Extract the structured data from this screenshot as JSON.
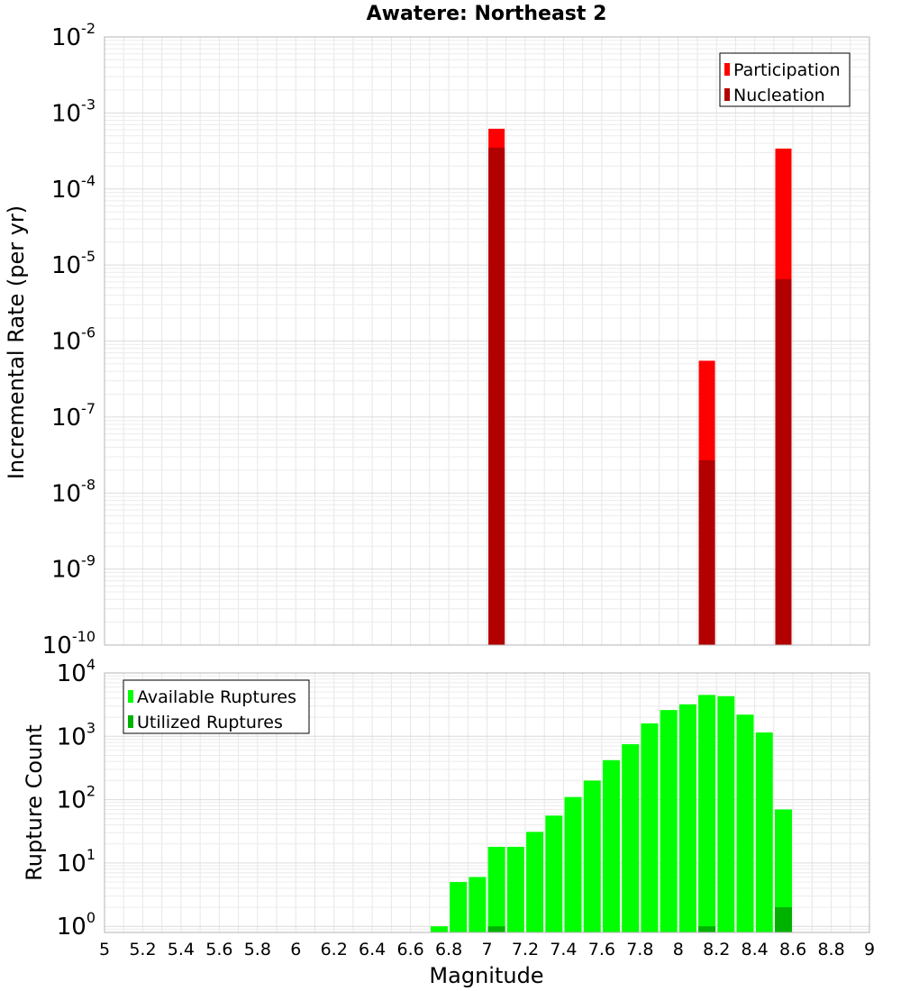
{
  "chart_data": [
    {
      "type": "bar",
      "title": "Awatere: Northeast 2",
      "xlabel": "Magnitude",
      "ylabel": "Incremental Rate (per yr)",
      "yscale": "log",
      "ylim": [
        1e-10,
        0.01
      ],
      "xlim": [
        5,
        9
      ],
      "y_tick_exponents": [
        "-2",
        "-3",
        "-4",
        "-5",
        "-6",
        "-7",
        "-8",
        "-9",
        "-10"
      ],
      "y_tick_base": "10",
      "legend": {
        "position": "top-right",
        "entries": [
          "Participation",
          "Nucleation"
        ]
      },
      "series": [
        {
          "name": "Participation",
          "color": "#ff0000",
          "points": [
            {
              "x": 7.05,
              "y": 0.00062
            },
            {
              "x": 8.15,
              "y": 5.5e-07
            },
            {
              "x": 8.55,
              "y": 0.00034
            }
          ]
        },
        {
          "name": "Nucleation",
          "color": "#b20000",
          "points": [
            {
              "x": 7.05,
              "y": 0.00035
            },
            {
              "x": 8.15,
              "y": 2.7e-08
            },
            {
              "x": 8.55,
              "y": 6.5e-06
            }
          ]
        }
      ]
    },
    {
      "type": "bar",
      "xlabel": "Magnitude",
      "ylabel": "Rupture Count",
      "yscale": "log",
      "ylim": [
        0.8,
        10000
      ],
      "xlim": [
        5,
        9
      ],
      "y_tick_exponents": [
        "0",
        "1",
        "2",
        "3",
        "4"
      ],
      "y_tick_base": "10",
      "x_tick_labels": [
        "5",
        "5.2",
        "5.4",
        "5.6",
        "5.8",
        "6",
        "6.2",
        "6.4",
        "6.6",
        "6.8",
        "7",
        "7.2",
        "7.4",
        "7.6",
        "7.8",
        "8",
        "8.2",
        "8.4",
        "8.6",
        "8.8",
        "9"
      ],
      "legend": {
        "position": "top-left",
        "entries": [
          "Available Ruptures",
          "Utilized Ruptures"
        ]
      },
      "series": [
        {
          "name": "Available Ruptures",
          "color": "#00ff00",
          "x": [
            6.75,
            6.85,
            6.95,
            7.05,
            7.15,
            7.25,
            7.35,
            7.45,
            7.55,
            7.65,
            7.75,
            7.85,
            7.95,
            8.05,
            8.15,
            8.25,
            8.35,
            8.45,
            8.55
          ],
          "values": [
            1,
            5,
            6,
            18,
            18,
            31,
            56,
            110,
            200,
            420,
            750,
            1600,
            2600,
            3200,
            4500,
            4300,
            2200,
            1150,
            70
          ]
        },
        {
          "name": "Utilized Ruptures",
          "color": "#00b200",
          "x": [
            7.05,
            8.15,
            8.55
          ],
          "values": [
            1,
            1,
            2
          ]
        }
      ]
    }
  ]
}
